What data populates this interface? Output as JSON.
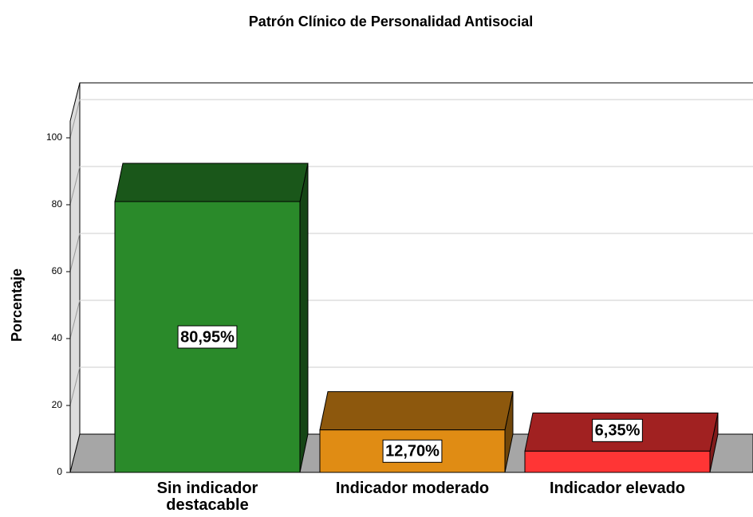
{
  "chart_data": {
    "type": "bar3d",
    "title": "Patrón Clínico de Personalidad Antisocial",
    "ylabel": "Porcentaje",
    "categories": [
      "Sin indicador destacable",
      "Indicador moderado",
      "Indicador elevado"
    ],
    "values": [
      80.95,
      12.7,
      6.35
    ],
    "value_labels": [
      "80,95%",
      "12,70%",
      "6,35%"
    ],
    "colors": [
      "#2a8a2a",
      "#e08c14",
      "#ff3535"
    ],
    "ylim": [
      0,
      105
    ],
    "yticks": [
      0,
      20,
      40,
      60,
      80,
      100
    ],
    "grid": true
  }
}
